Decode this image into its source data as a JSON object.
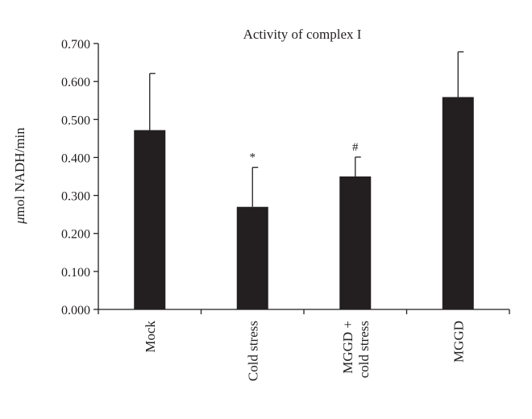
{
  "chart_data": {
    "type": "bar",
    "title": "Activity of complex I",
    "ylabel_prefix": "μ",
    "ylabel_rest": "mol NADH/min",
    "xlabel": "",
    "ylim": [
      0,
      0.7
    ],
    "yticks": [
      "0.000",
      "0.100",
      "0.200",
      "0.300",
      "0.400",
      "0.500",
      "0.600",
      "0.700"
    ],
    "categories": [
      {
        "lines": [
          "Mock"
        ]
      },
      {
        "lines": [
          "Cold stress"
        ]
      },
      {
        "lines": [
          "MGGD +",
          "cold stress"
        ]
      },
      {
        "lines": [
          "MGGD"
        ]
      }
    ],
    "values": [
      0.472,
      0.27,
      0.35,
      0.559
    ],
    "error_plus": [
      0.149,
      0.104,
      0.051,
      0.119
    ],
    "annotations": [
      "",
      "*",
      "#",
      ""
    ],
    "bar_color": "#231f20",
    "grid": false,
    "legend": "none"
  }
}
